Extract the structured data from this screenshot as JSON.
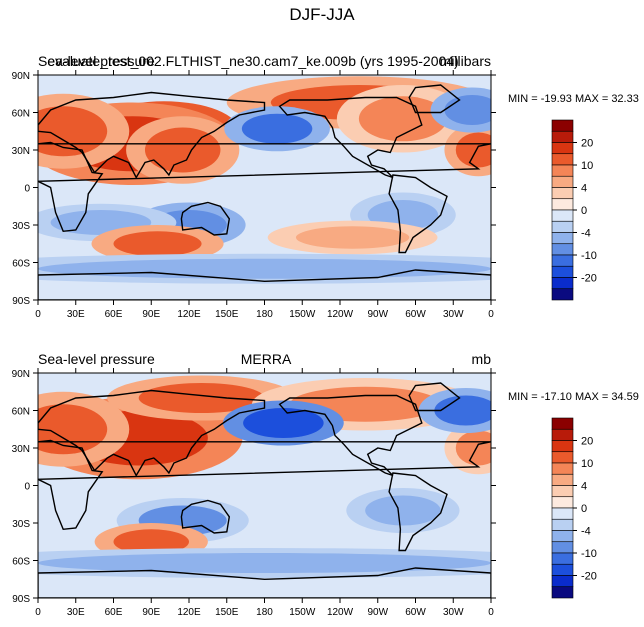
{
  "figure": {
    "title": "DJF-JJA"
  },
  "chart_data": [
    {
      "type": "heatmap",
      "title": "Sea-level pressure",
      "run_label": "evaluate_test_002.FLTHIST_ne30.cam7_ke.009b (yrs 1995-2004)",
      "units": "millibars",
      "stats": "MIN = -19.93 MAX =  32.33",
      "x_ticks": [
        "0",
        "30E",
        "60E",
        "90E",
        "120E",
        "150E",
        "180",
        "150W",
        "120W",
        "90W",
        "60W",
        "30W",
        "0"
      ],
      "y_ticks": [
        "90N",
        "60N",
        "30N",
        "0",
        "30S",
        "60S",
        "90S"
      ],
      "xlim": [
        0,
        360
      ],
      "ylim": [
        -90,
        90
      ],
      "colorbar_labels": [
        "20",
        "10",
        "4",
        "0",
        "-4",
        "-10",
        "-20"
      ],
      "field": [
        {
          "lon": 100,
          "lat": 45,
          "value": 26,
          "w": 40,
          "h": 16
        },
        {
          "lon": 75,
          "lat": 35,
          "value": 18,
          "w": 55,
          "h": 22
        },
        {
          "lon": 20,
          "lat": 45,
          "value": 12,
          "w": 35,
          "h": 20
        },
        {
          "lon": 115,
          "lat": 30,
          "value": 14,
          "w": 30,
          "h": 18
        },
        {
          "lon": 255,
          "lat": 68,
          "value": 10,
          "w": 70,
          "h": 14
        },
        {
          "lon": 290,
          "lat": 55,
          "value": 8,
          "w": 35,
          "h": 18
        },
        {
          "lon": 350,
          "lat": 30,
          "value": 10,
          "w": 18,
          "h": 14
        },
        {
          "lon": 190,
          "lat": 47,
          "value": -14,
          "w": 28,
          "h": 12
        },
        {
          "lon": 345,
          "lat": 62,
          "value": -10,
          "w": 22,
          "h": 12
        },
        {
          "lon": 120,
          "lat": -30,
          "value": -10,
          "w": 30,
          "h": 12
        },
        {
          "lon": 50,
          "lat": -28,
          "value": -6,
          "w": 40,
          "h": 10
        },
        {
          "lon": 290,
          "lat": -22,
          "value": -5,
          "w": 28,
          "h": 12
        },
        {
          "lon": 95,
          "lat": -45,
          "value": 10,
          "w": 35,
          "h": 10
        },
        {
          "lon": 250,
          "lat": -40,
          "value": 6,
          "w": 45,
          "h": 9
        },
        {
          "lon": 180,
          "lat": -65,
          "value": -6,
          "w": 180,
          "h": 8
        }
      ]
    },
    {
      "type": "heatmap",
      "title": "Sea-level pressure",
      "run_label": "MERRA",
      "units": "mb",
      "stats": "MIN = -17.10 MAX =  34.59",
      "x_ticks": [
        "0",
        "30E",
        "60E",
        "90E",
        "120E",
        "150E",
        "180",
        "150W",
        "120W",
        "90W",
        "60W",
        "30W",
        "0"
      ],
      "y_ticks": [
        "90N",
        "60N",
        "30N",
        "0",
        "30S",
        "60S",
        "90S"
      ],
      "xlim": [
        0,
        360
      ],
      "ylim": [
        -90,
        90
      ],
      "colorbar_labels": [
        "20",
        "10",
        "4",
        "0",
        "-4",
        "-10",
        "-20"
      ],
      "field": [
        {
          "lon": 100,
          "lat": 42,
          "value": 30,
          "w": 35,
          "h": 14
        },
        {
          "lon": 80,
          "lat": 38,
          "value": 18,
          "w": 55,
          "h": 22
        },
        {
          "lon": 20,
          "lat": 45,
          "value": 10,
          "w": 35,
          "h": 20
        },
        {
          "lon": 130,
          "lat": 70,
          "value": 10,
          "w": 50,
          "h": 12
        },
        {
          "lon": 260,
          "lat": 65,
          "value": 8,
          "w": 60,
          "h": 14
        },
        {
          "lon": 350,
          "lat": 30,
          "value": 8,
          "w": 18,
          "h": 14
        },
        {
          "lon": 195,
          "lat": 50,
          "value": -16,
          "w": 32,
          "h": 12
        },
        {
          "lon": 340,
          "lat": 60,
          "value": -12,
          "w": 25,
          "h": 12
        },
        {
          "lon": 115,
          "lat": -28,
          "value": -8,
          "w": 35,
          "h": 12
        },
        {
          "lon": 290,
          "lat": -20,
          "value": -6,
          "w": 30,
          "h": 12
        },
        {
          "lon": 90,
          "lat": -45,
          "value": 10,
          "w": 30,
          "h": 10
        },
        {
          "lon": 180,
          "lat": -62,
          "value": -5,
          "w": 180,
          "h": 8
        }
      ]
    }
  ]
}
